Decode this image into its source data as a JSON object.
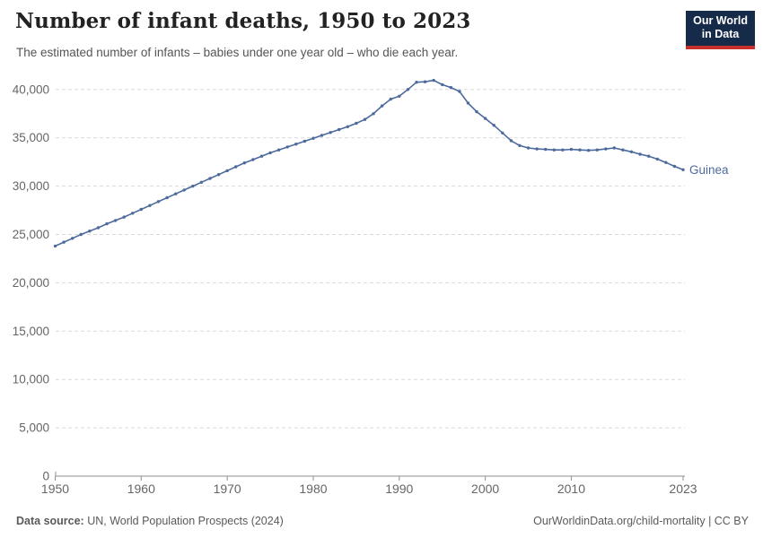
{
  "header": {
    "title": "Number of infant deaths, 1950 to 2023",
    "subtitle": "The estimated number of infants – babies under one year old – who die each year.",
    "logo": {
      "line1": "Our World",
      "line2": "in Data",
      "bg_color": "#162a4a",
      "accent_color": "#c8302c"
    }
  },
  "chart_data": {
    "type": "line",
    "title": "Number of infant deaths, 1950 to 2023",
    "xlabel": "",
    "ylabel": "",
    "grid": true,
    "x_ticks": [
      1950,
      1960,
      1970,
      1980,
      1990,
      2000,
      2010,
      2023
    ],
    "y_ticks": [
      0,
      5000,
      10000,
      15000,
      20000,
      25000,
      30000,
      35000,
      40000
    ],
    "ylim": [
      0,
      41400
    ],
    "xlim": [
      1950,
      2023
    ],
    "end_label": "Guinea",
    "series": [
      {
        "name": "Guinea",
        "color": "#4C6A9C",
        "x": [
          1950,
          1951,
          1952,
          1953,
          1954,
          1955,
          1956,
          1957,
          1958,
          1959,
          1960,
          1961,
          1962,
          1963,
          1964,
          1965,
          1966,
          1967,
          1968,
          1969,
          1970,
          1971,
          1972,
          1973,
          1974,
          1975,
          1976,
          1977,
          1978,
          1979,
          1980,
          1981,
          1982,
          1983,
          1984,
          1985,
          1986,
          1987,
          1988,
          1989,
          1990,
          1991,
          1992,
          1993,
          1994,
          1995,
          1996,
          1997,
          1998,
          1999,
          2000,
          2001,
          2002,
          2003,
          2004,
          2005,
          2006,
          2007,
          2008,
          2009,
          2010,
          2011,
          2012,
          2013,
          2014,
          2015,
          2016,
          2017,
          2018,
          2019,
          2020,
          2021,
          2022,
          2023
        ],
        "values": [
          23800,
          24200,
          24600,
          25000,
          25350,
          25700,
          26100,
          26450,
          26800,
          27200,
          27600,
          28000,
          28400,
          28800,
          29200,
          29600,
          30000,
          30400,
          30800,
          31200,
          31600,
          32000,
          32400,
          32750,
          33100,
          33450,
          33750,
          34050,
          34350,
          34650,
          34950,
          35250,
          35550,
          35850,
          36150,
          36500,
          36900,
          37500,
          38300,
          39000,
          39300,
          40000,
          40750,
          40800,
          40950,
          40500,
          40200,
          39800,
          38600,
          37700,
          37000,
          36300,
          35500,
          34700,
          34200,
          33950,
          33850,
          33800,
          33750,
          33750,
          33800,
          33750,
          33700,
          33750,
          33850,
          33950,
          33750,
          33550,
          33300,
          33100,
          32800,
          32450,
          32050,
          31700
        ]
      }
    ],
    "colors": {
      "grid": "#d9d9d9",
      "axis": "#8f8f8f",
      "tick_label": "#666666"
    }
  },
  "footer": {
    "source_label": "Data source:",
    "source_text": " UN, World Population Prospects (2024)",
    "credit": "OurWorldinData.org/child-mortality | CC BY"
  }
}
